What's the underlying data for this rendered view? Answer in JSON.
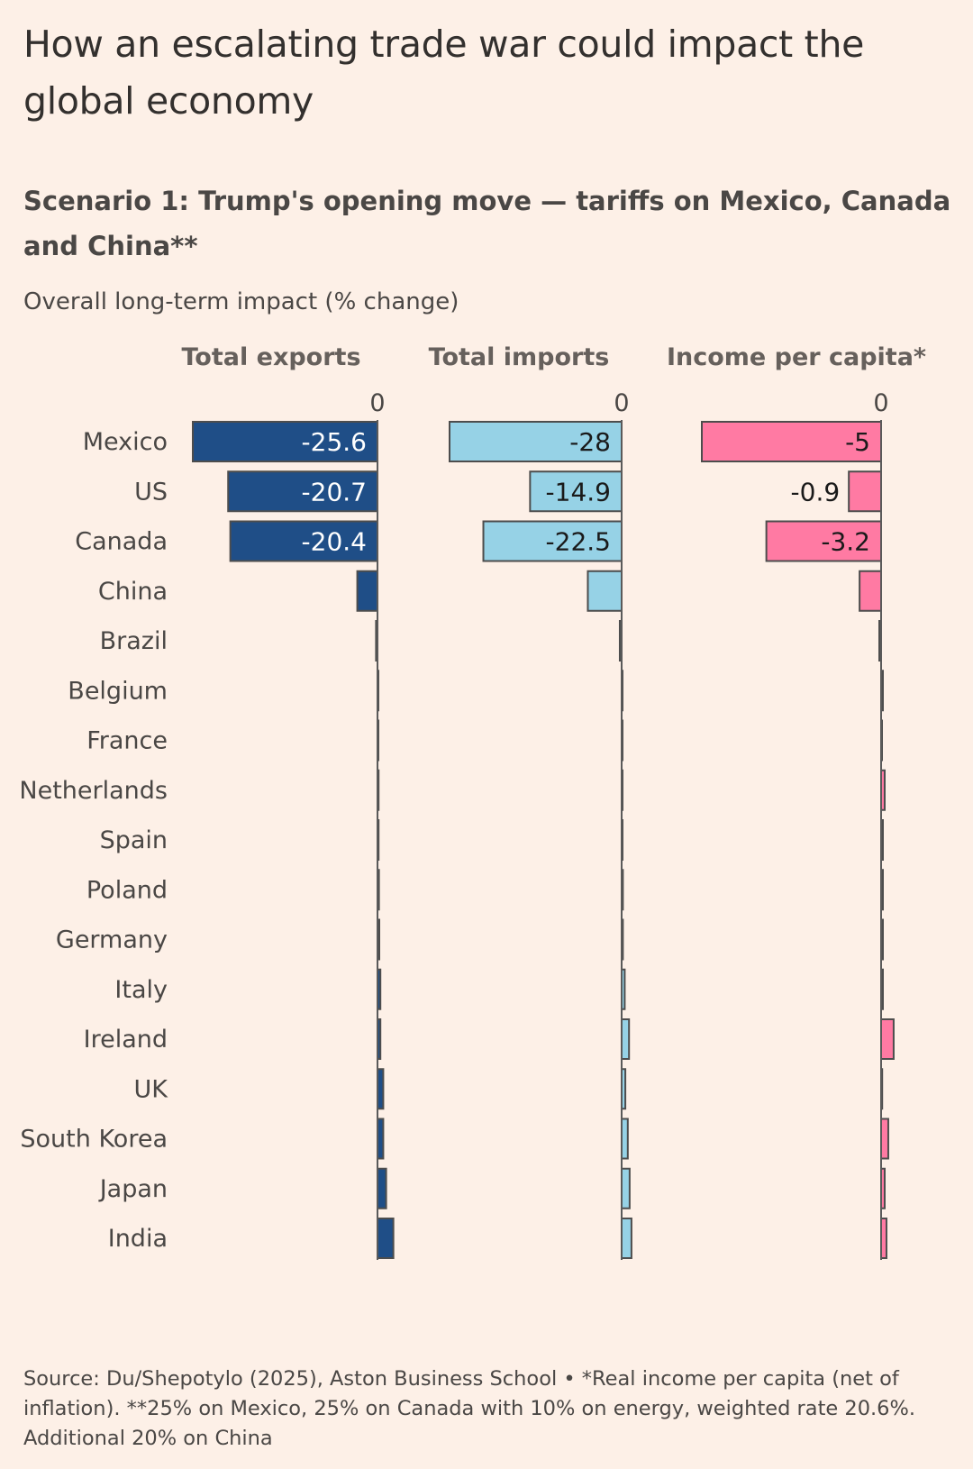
{
  "title": "How an escalating trade war could impact the global economy",
  "subtitle": "Scenario 1: Trump's opening move — tariffs on Mexico, Canada and China**",
  "measure": "Overall long-term impact (% change)",
  "source": "Source: Du/Shepotylo (2025), Aston Business School • *Real income per capita (net of inflation). **25% on Mexico, 25% on Canada with 10% on energy, weighted rate 20.6%. Additional 20% on China",
  "colors": {
    "background": "#fdf0e7",
    "exports": "#1f4e87",
    "imports": "#96d2e6",
    "income": "#ff7aa3",
    "bar_outline": "#4d4d4d",
    "zero_line": "#5a5a5a"
  },
  "chart_data": {
    "type": "bar",
    "orientation": "horizontal",
    "categories": [
      "Mexico",
      "US",
      "Canada",
      "China",
      "Brazil",
      "Belgium",
      "France",
      "Netherlands",
      "Spain",
      "Poland",
      "Germany",
      "Italy",
      "Ireland",
      "UK",
      "South Korea",
      "Japan",
      "India"
    ],
    "series": [
      {
        "name": "Total exports",
        "zero_label": "0",
        "values": [
          -25.6,
          -20.7,
          -20.4,
          -2.8,
          -0.2,
          0.1,
          0.1,
          0.15,
          0.15,
          0.2,
          0.25,
          0.4,
          0.4,
          0.8,
          0.8,
          1.2,
          2.2
        ],
        "labels": [
          "-25.6",
          "-20.7",
          "-20.4",
          "",
          "",
          "",
          "",
          "",
          "",
          "",
          "",
          "",
          "",
          "",
          "",
          "",
          ""
        ]
      },
      {
        "name": "Total imports",
        "zero_label": "0",
        "values": [
          -28,
          -14.9,
          -22.5,
          -5.5,
          -0.3,
          0.05,
          0.05,
          0.1,
          0.1,
          0.2,
          0.2,
          0.5,
          1.2,
          0.6,
          1.0,
          1.3,
          1.6
        ],
        "labels": [
          "-28",
          "-14.9",
          "-22.5",
          "",
          "",
          "",
          "",
          "",
          "",
          "",
          "",
          "",
          "",
          "",
          "",
          "",
          ""
        ]
      },
      {
        "name": "Income per capita*",
        "zero_label": "0",
        "values": [
          -5,
          -0.9,
          -3.2,
          -0.6,
          -0.05,
          0.05,
          0.02,
          0.1,
          0.05,
          0.05,
          0.05,
          0.05,
          0.35,
          0.03,
          0.2,
          0.1,
          0.15
        ],
        "labels": [
          "-5",
          "-0.9",
          "-3.2",
          "",
          "",
          "",
          "",
          "",
          "",
          "",
          "",
          "",
          "",
          "",
          "",
          "",
          ""
        ]
      }
    ]
  }
}
